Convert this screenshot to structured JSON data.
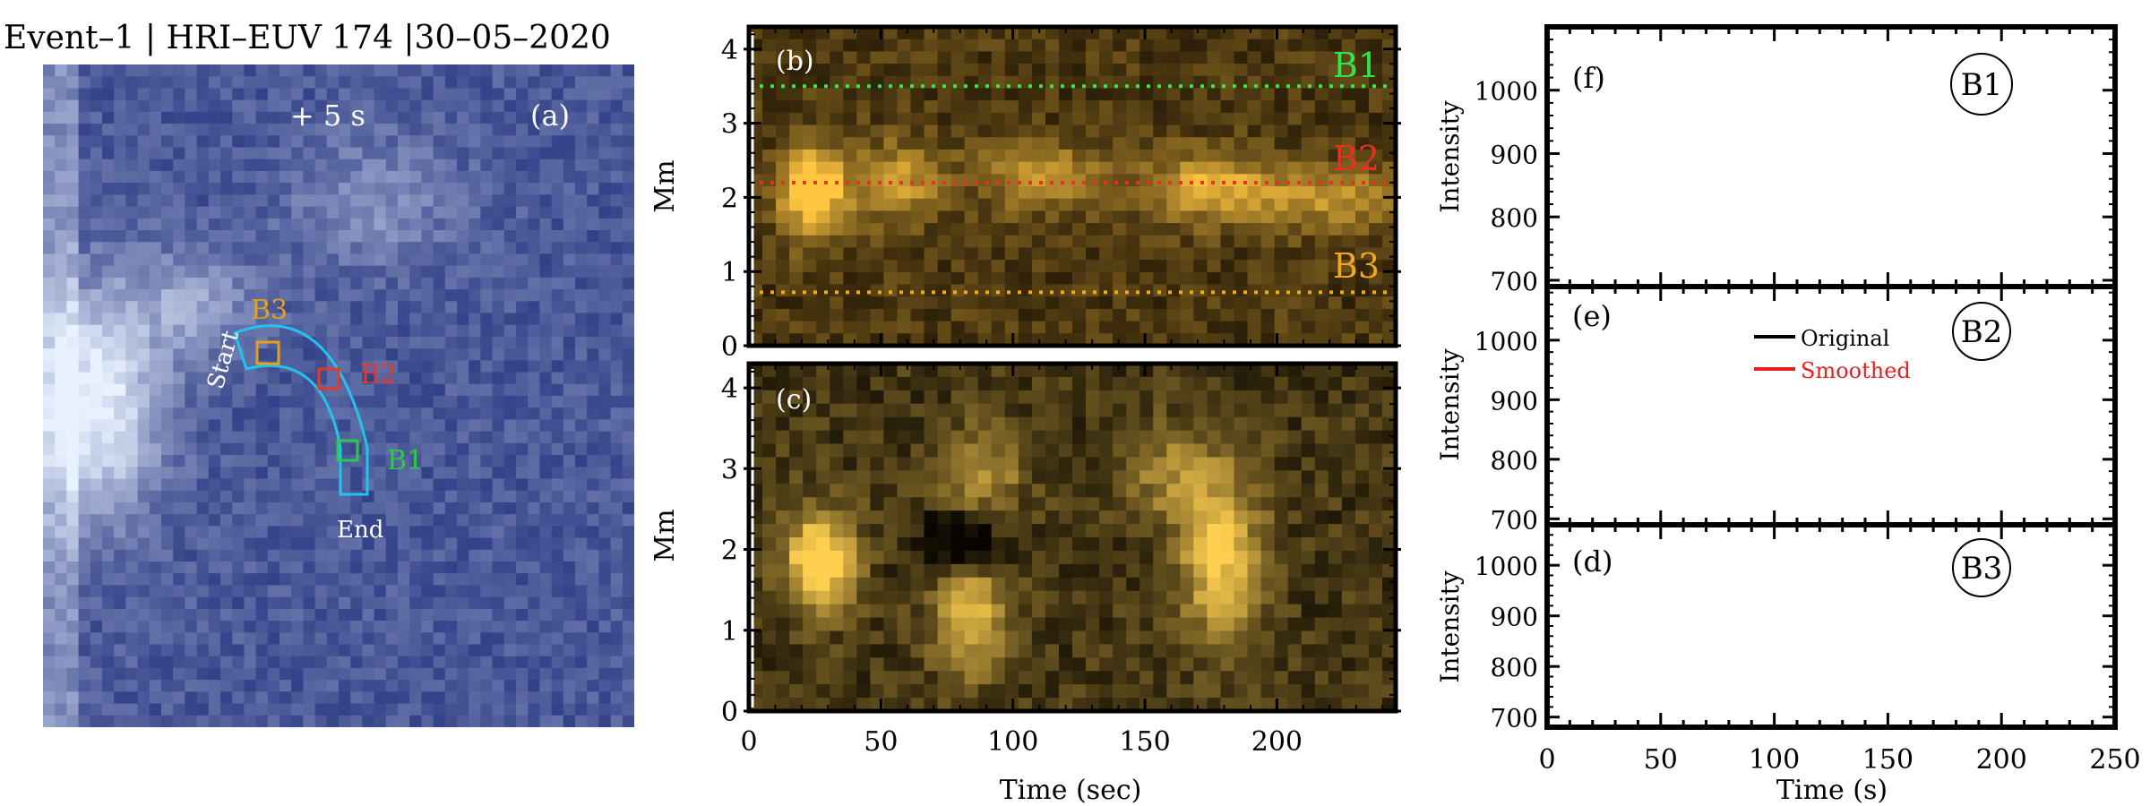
{
  "figure_title": "Event–1  |  HRI–EUV 174  |30–05–2020",
  "panel_a": {
    "label": "(a)",
    "time_offset": "+  5 s",
    "start_label": "Start",
    "end_label": "End",
    "boxes": [
      {
        "name": "B3",
        "color": "#e6a019"
      },
      {
        "name": "B2",
        "color": "#e03a2a"
      },
      {
        "name": "B1",
        "color": "#2ec84a"
      }
    ],
    "colors": {
      "image_dark": "#0a1a6e",
      "image_bright": "#e8f2ff",
      "path_outline": "#22c4ee"
    }
  },
  "chart_data": [
    {
      "type": "heatmap",
      "panel_label": "(b)",
      "xlabel": "",
      "ylabel": "Mm",
      "xlim": [
        0,
        245
      ],
      "ylim": [
        0,
        4.3
      ],
      "yticks": [
        0,
        1,
        2,
        3,
        4
      ],
      "xticks": [
        0,
        50,
        100,
        150,
        200
      ],
      "colors": {
        "dark": "#140c02",
        "bright": "#ffc640"
      },
      "slit_lines": [
        {
          "name": "B1",
          "y": 3.5,
          "color": "#2ee84a"
        },
        {
          "name": "B2",
          "y": 2.2,
          "color": "#e63220"
        },
        {
          "name": "B3",
          "y": 0.72,
          "color": "#f0a820"
        }
      ]
    },
    {
      "type": "heatmap",
      "panel_label": "(c)",
      "xlabel": "Time (sec)",
      "ylabel": "Mm",
      "xlim": [
        0,
        245
      ],
      "ylim": [
        0,
        4.3
      ],
      "yticks": [
        0,
        1,
        2,
        3,
        4
      ],
      "xticks": [
        0,
        50,
        100,
        150,
        200
      ],
      "colors": {
        "dark": "#080500",
        "bright": "#ffd050"
      }
    },
    {
      "type": "line",
      "panel_label": "(f)",
      "badge": "B1",
      "ylabel": "Intensity",
      "xlim": [
        0,
        250
      ],
      "ylim": [
        690,
        1100
      ],
      "yticks": [
        700,
        800,
        900,
        1000
      ],
      "series": []
    },
    {
      "type": "line",
      "panel_label": "(e)",
      "badge": "B2",
      "ylabel": "Intensity",
      "xlim": [
        0,
        250
      ],
      "ylim": [
        690,
        1090
      ],
      "yticks": [
        700,
        800,
        900,
        1000
      ],
      "legend": [
        {
          "name": "Original",
          "color": "#000000"
        },
        {
          "name": "Smoothed",
          "color": "#e62020"
        }
      ],
      "series": []
    },
    {
      "type": "line",
      "panel_label": "(d)",
      "badge": "B3",
      "ylabel": "Intensity",
      "xlabel": "Time (s)",
      "xlim": [
        0,
        250
      ],
      "ylim": [
        680,
        1080
      ],
      "yticks": [
        700,
        800,
        900,
        1000
      ],
      "xticks": [
        0,
        50,
        100,
        150,
        200,
        250
      ],
      "series": []
    }
  ]
}
